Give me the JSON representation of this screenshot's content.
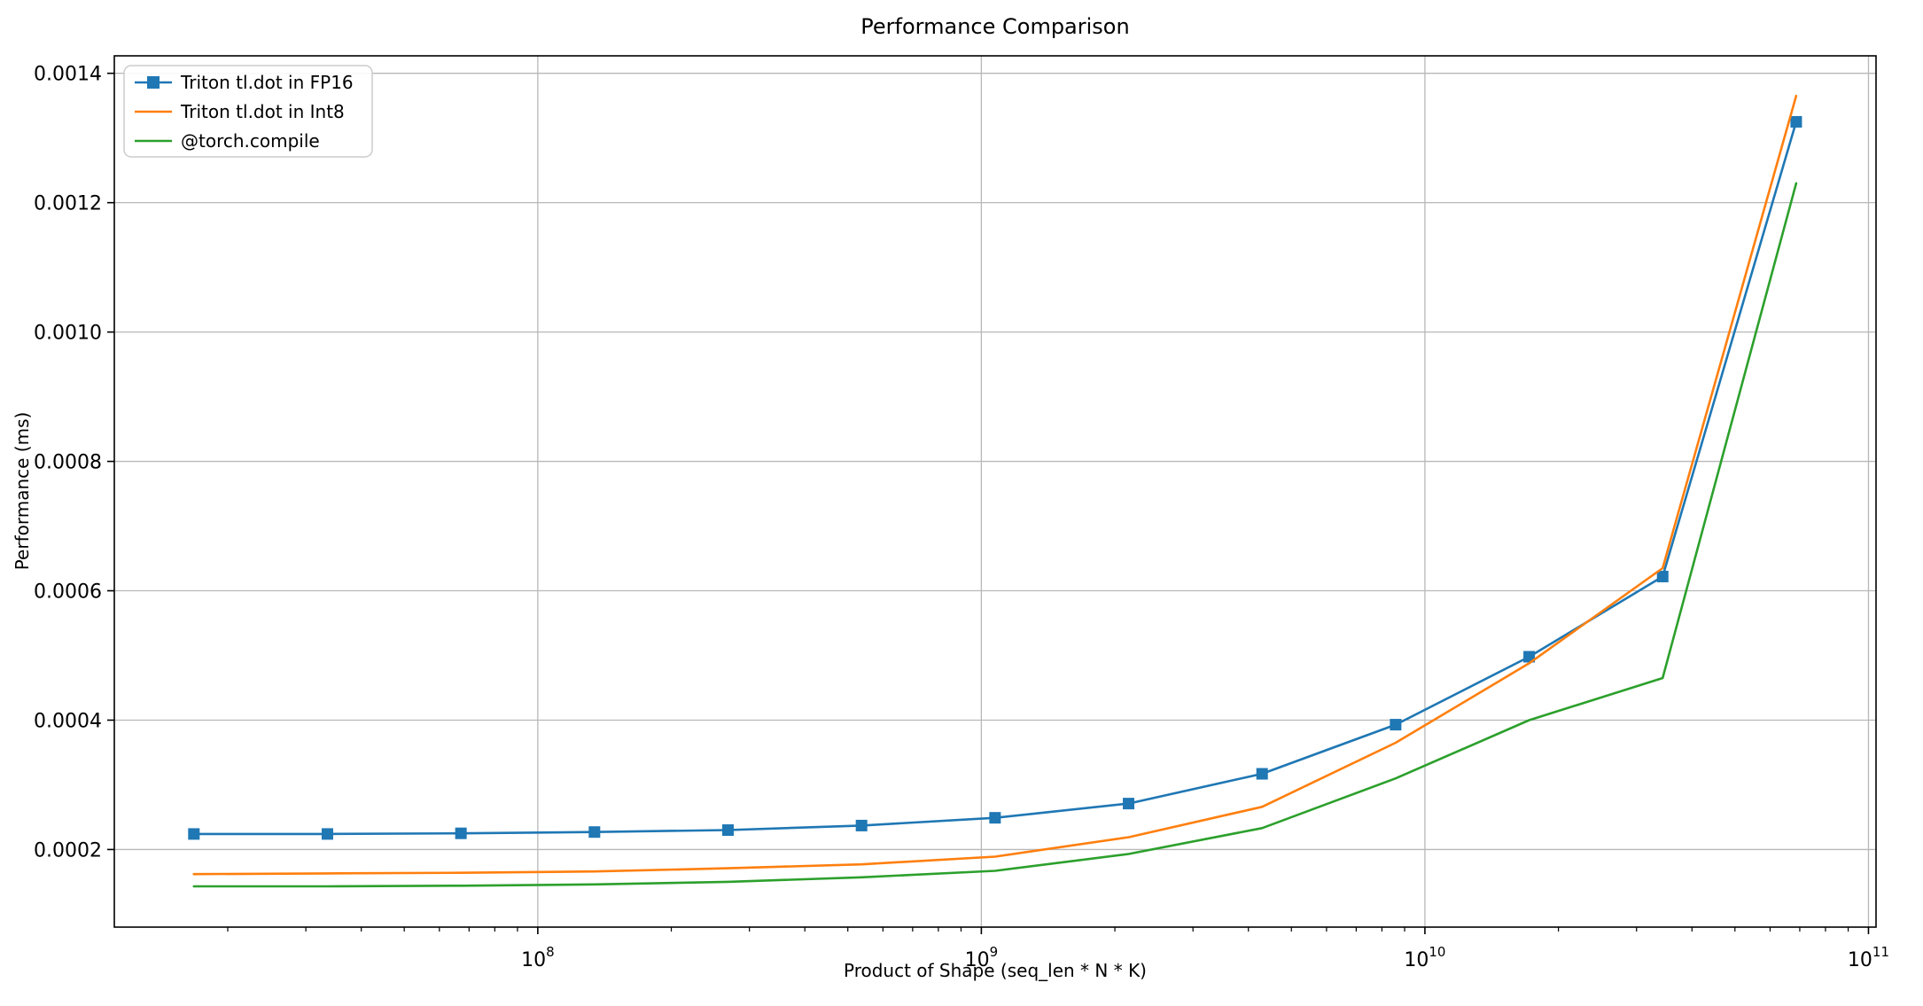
{
  "chart_data": {
    "type": "line",
    "title": "Performance Comparison",
    "xlabel": "Product of Shape (seq_len * N * K)",
    "ylabel": "Performance (ms)",
    "x_scale": "log",
    "y_scale": "linear",
    "grid": true,
    "legend_position": "upper left",
    "background_color": "#ffffff",
    "grid_color": "#b8b8b8",
    "frame_color": "#000000",
    "xlim": [
      11100000,
      104000000000
    ],
    "ylim": [
      8e-05,
      0.001427
    ],
    "x": [
      16777216,
      33554432,
      67108864,
      134217728,
      268435456,
      536870912,
      1073741824,
      2147483648,
      4294967296,
      8589934592,
      17179869184,
      34359738368,
      68719476736
    ],
    "series": [
      {
        "name": "Triton tl.dot in FP16",
        "color": "#1f77b4",
        "marker": "square",
        "values": [
          0.000224,
          0.000224,
          0.000225,
          0.000227,
          0.00023,
          0.000237,
          0.000249,
          0.000271,
          0.000317,
          0.000393,
          0.000498,
          0.000622,
          0.001325
        ]
      },
      {
        "name": "Triton tl.dot in Int8",
        "color": "#ff7f0e",
        "marker": "none",
        "values": [
          0.000162,
          0.000163,
          0.000164,
          0.000166,
          0.000171,
          0.000177,
          0.000189,
          0.000219,
          0.000266,
          0.000365,
          0.000488,
          0.000635,
          0.001365
        ]
      },
      {
        "name": "@torch.compile",
        "color": "#2ca02c",
        "marker": "none",
        "values": [
          0.000143,
          0.000143,
          0.000144,
          0.000146,
          0.00015,
          0.000157,
          0.000167,
          0.000193,
          0.000233,
          0.00031,
          0.0004,
          0.000465,
          0.00123
        ]
      }
    ],
    "x_ticks": [
      {
        "value": 100000000.0,
        "base": "10",
        "exp": "8"
      },
      {
        "value": 1000000000.0,
        "base": "10",
        "exp": "9"
      },
      {
        "value": 10000000000.0,
        "base": "10",
        "exp": "10"
      },
      {
        "value": 100000000000.0,
        "base": "10",
        "exp": "11"
      }
    ],
    "y_ticks": [
      {
        "value": 0.0002,
        "label": "0.0002"
      },
      {
        "value": 0.0004,
        "label": "0.0004"
      },
      {
        "value": 0.0006,
        "label": "0.0006"
      },
      {
        "value": 0.0008,
        "label": "0.0008"
      },
      {
        "value": 0.001,
        "label": "0.0010"
      },
      {
        "value": 0.0012,
        "label": "0.0012"
      },
      {
        "value": 0.0014,
        "label": "0.0014"
      }
    ]
  }
}
